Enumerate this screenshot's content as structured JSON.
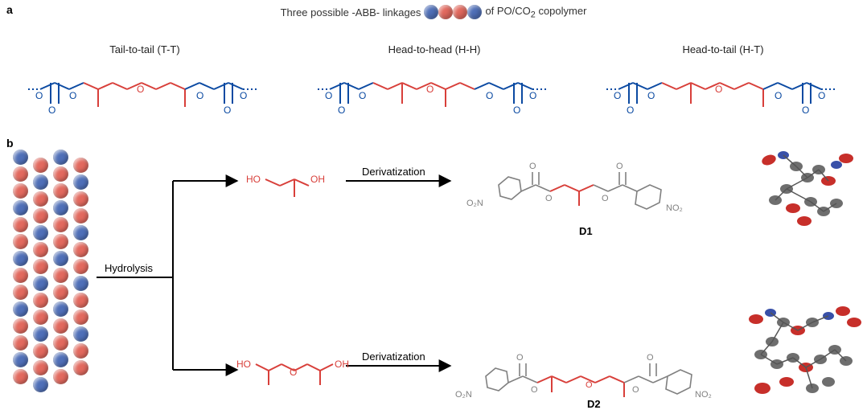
{
  "colors": {
    "blue_bead": "#4f6fb8",
    "red_bead": "#e2695e",
    "carbonate_blue": "#0b4aa2",
    "ether_red": "#d83f3a",
    "bond_gray": "#808080",
    "text": "#222222",
    "black": "#000000",
    "background": "#ffffff"
  },
  "panel_a": {
    "label": "a",
    "title_prefix": "Three possible -ABB- linkages",
    "title_suffix": "of  PO/CO",
    "title_suffix2": " copolymer",
    "subscript": "2",
    "linkages": [
      {
        "name": "Tail-to-tail (T-T)"
      },
      {
        "name": "Head-to-head (H-H)"
      },
      {
        "name": "Head-to-tail (H-T)"
      }
    ],
    "bead_pattern": [
      "blue",
      "red",
      "red",
      "blue"
    ]
  },
  "panel_b": {
    "label": "b",
    "hydrolysis_label": "Hydrolysis",
    "derivatization_label": "Derivatization",
    "products": [
      {
        "id": "D1"
      },
      {
        "id": "D2"
      }
    ],
    "chain_columns": [
      [
        "blue",
        "red",
        "red",
        "blue",
        "red",
        "red",
        "blue",
        "red",
        "red",
        "blue",
        "red",
        "red",
        "blue",
        "red"
      ],
      [
        "red",
        "blue",
        "red",
        "red",
        "blue",
        "red",
        "red",
        "blue",
        "red",
        "red",
        "blue",
        "red",
        "red",
        "blue"
      ],
      [
        "blue",
        "red",
        "red",
        "blue",
        "red",
        "red",
        "blue",
        "red",
        "red",
        "blue",
        "red",
        "red",
        "blue",
        "red"
      ],
      [
        "red",
        "blue",
        "red",
        "red",
        "blue",
        "red",
        "red",
        "blue",
        "red",
        "red",
        "blue",
        "red",
        "red"
      ]
    ],
    "layout": {
      "col_widths_a": [
        360,
        360,
        358
      ],
      "fontsize_title": 13,
      "fontsize_label": 13,
      "fontsize_panel": 14
    }
  }
}
